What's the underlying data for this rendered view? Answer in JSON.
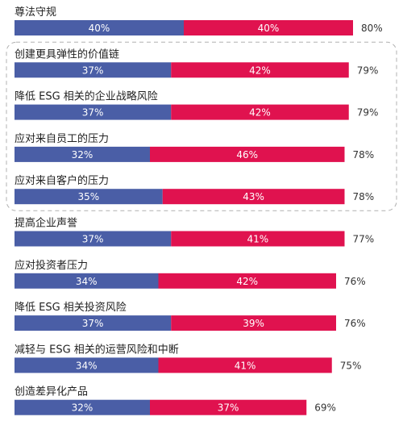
{
  "chart_data": {
    "type": "bar",
    "orientation": "horizontal",
    "stacked": true,
    "categories": [
      "尊法守规",
      "创建更具弹性的价值链",
      "降低 ESG 相关的企业战略风险",
      "应对来自员工的压力",
      "应对来自客户的压力",
      "提高企业声誉",
      "应对投资者压力",
      "降低 ESG 相关投资风险",
      "减轻与 ESG 相关的运营风险和中断",
      "创造差异化产品"
    ],
    "series": [
      {
        "values": [
          40,
          37,
          37,
          32,
          35,
          37,
          34,
          37,
          34,
          32
        ]
      },
      {
        "values": [
          40,
          42,
          42,
          46,
          43,
          41,
          42,
          39,
          41,
          37
        ]
      }
    ],
    "totals": [
      80,
      79,
      79,
      78,
      78,
      77,
      76,
      76,
      75,
      69
    ],
    "value_suffix": "%",
    "highlighted_group": [
      1,
      4
    ],
    "xlim": [
      0,
      100
    ],
    "colors": {
      "series_1": "#4a5ea6",
      "series_2": "#e0124f",
      "highlight_border": "#b0b0b0",
      "text": "#222222"
    }
  }
}
